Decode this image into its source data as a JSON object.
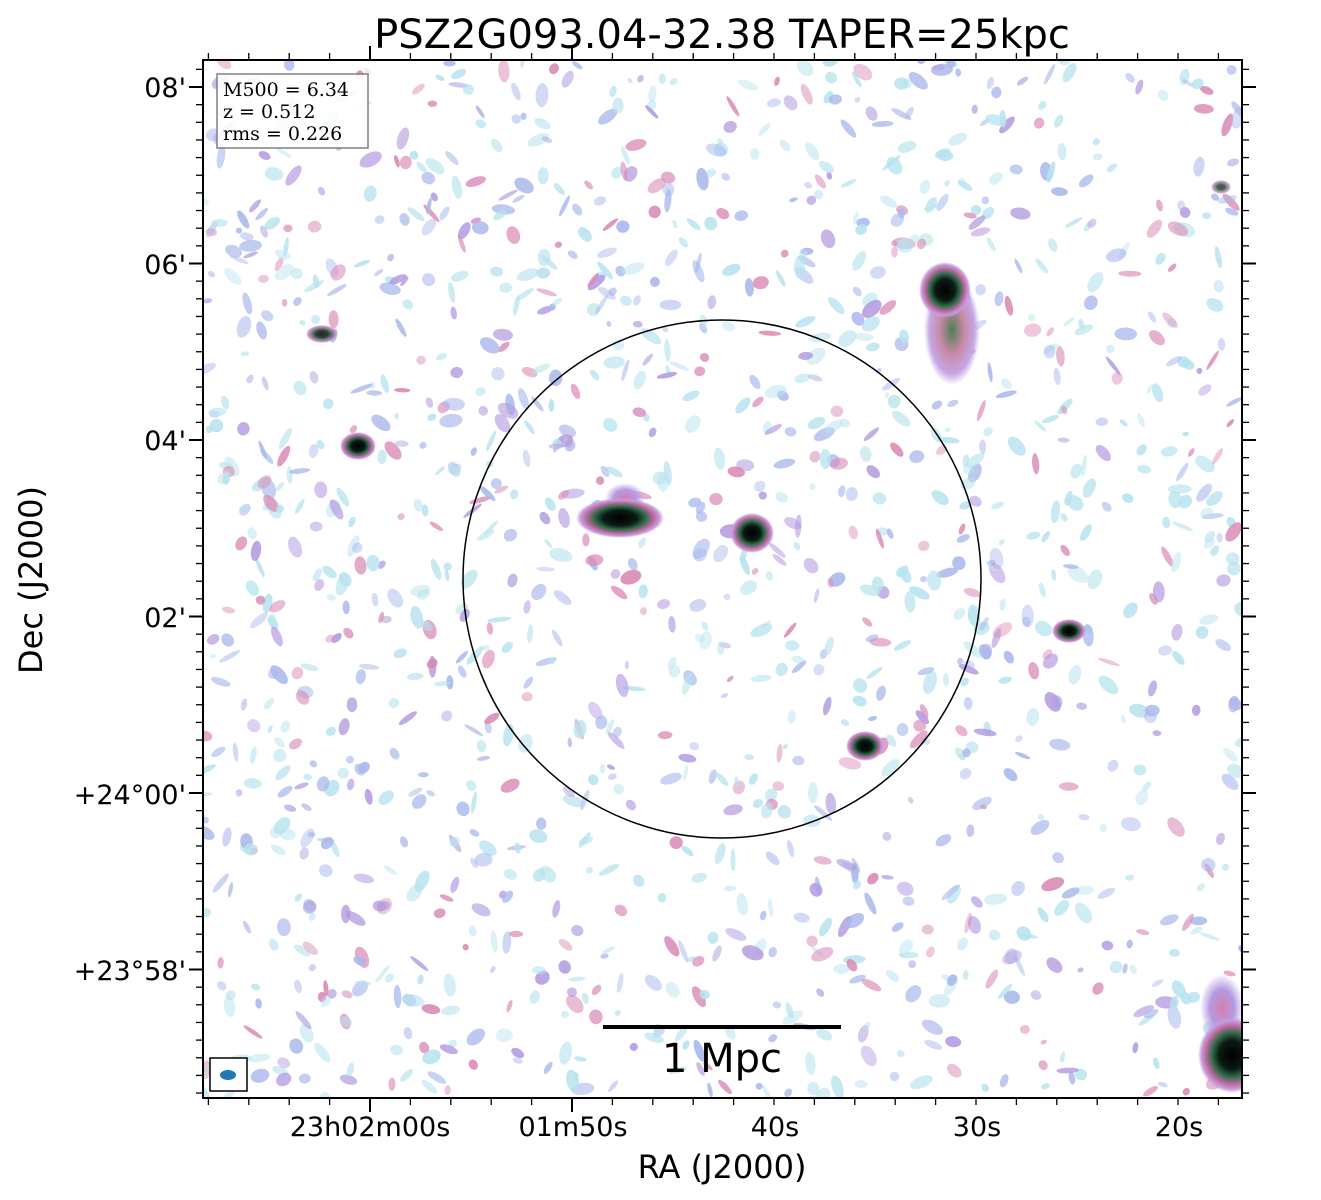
{
  "title": "PSZ2G093.04-32.38 TAPER=25kpc",
  "xlabel": "RA (J2000)",
  "ylabel": "Dec (J2000)",
  "x_ticks": [
    "23h02m00s",
    "01m50s",
    "40s",
    "30s",
    "20s"
  ],
  "y_ticks": [
    "08'",
    "06'",
    "04'",
    "02'",
    "+24°00'",
    "+23°58'"
  ],
  "info_box": {
    "line1": "M500 = 6.34",
    "line2": "z = 0.512",
    "line3": "rms = 0.226"
  },
  "scale_bar_label": "1 Mpc",
  "colors": {
    "frame": "#000000",
    "beam": "#1f77b4",
    "noise_light": "#b7e3ee",
    "noise_blue": "#a9b8ec",
    "noise_purple": "#b39be0",
    "noise_pink": "#d98ab5",
    "source_green": "#2f6b4a",
    "source_core": "#000000"
  }
}
